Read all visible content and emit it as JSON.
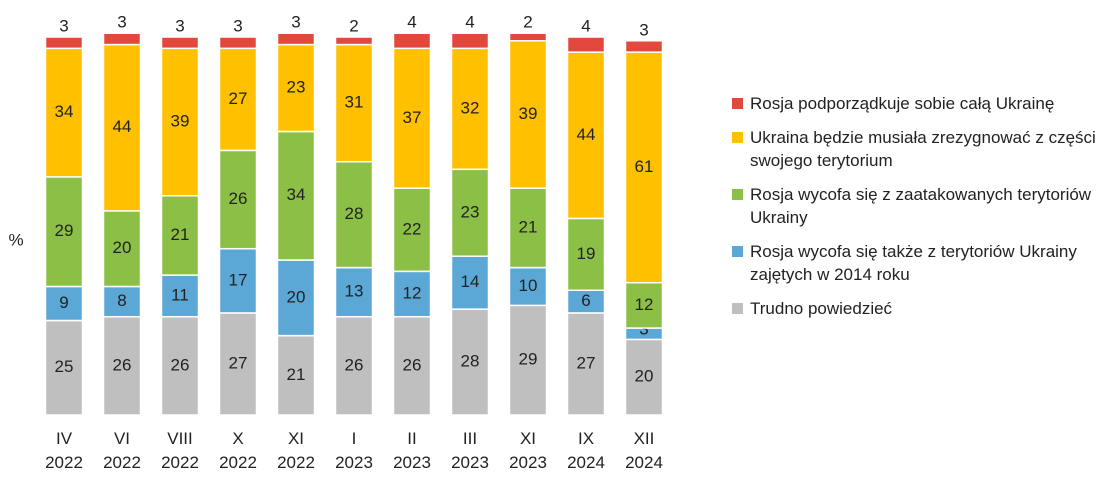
{
  "chart_data": {
    "type": "stacked-bar",
    "y_label": "%",
    "categories": [
      "IV 2022",
      "VI 2022",
      "VIII 2022",
      "X 2022",
      "XI 2022",
      "I 2023",
      "II 2023",
      "III 2023",
      "XI 2023",
      "IX 2024",
      "XII 2024"
    ],
    "series": [
      {
        "name": "Trudno powiedzieć",
        "color": "#bfbfbf",
        "values": [
          25,
          26,
          26,
          27,
          21,
          26,
          26,
          28,
          29,
          27,
          20
        ]
      },
      {
        "name": "Rosja wycofa się także z terytoriów Ukrainy zajętych w 2014 roku",
        "color": "#5ba7d6",
        "values": [
          9,
          8,
          11,
          17,
          20,
          13,
          12,
          14,
          10,
          6,
          3
        ]
      },
      {
        "name": "Rosja wycofa się z zaatakowanych terytoriów Ukrainy",
        "color": "#8cbf45",
        "values": [
          29,
          20,
          21,
          26,
          34,
          28,
          22,
          23,
          21,
          19,
          12
        ]
      },
      {
        "name": "Ukraina będzie musiała zrezygnować z części swojego terytorium",
        "color": "#ffc000",
        "values": [
          34,
          44,
          39,
          27,
          23,
          31,
          37,
          32,
          39,
          44,
          61
        ]
      },
      {
        "name": "Rosja podporządkuje sobie całą Ukrainę",
        "color": "#e3483c",
        "values": [
          3,
          3,
          3,
          3,
          3,
          2,
          4,
          4,
          2,
          4,
          3
        ]
      }
    ],
    "ylim": [
      0,
      100
    ]
  }
}
